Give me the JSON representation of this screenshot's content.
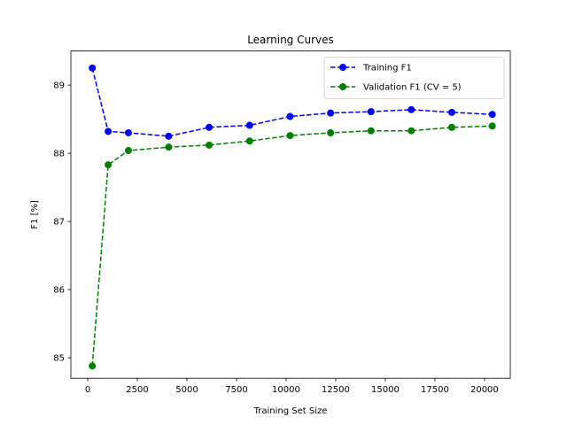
{
  "chart_data": {
    "type": "line",
    "title": "Learning Curves",
    "xlabel": "Training Set Size",
    "ylabel": "F1 [%]",
    "xlim": [
      -850,
      21300
    ],
    "ylim": [
      84.7,
      89.5
    ],
    "xticks": [
      0,
      2500,
      5000,
      7500,
      10000,
      12500,
      15000,
      17500,
      20000
    ],
    "yticks": [
      85,
      86,
      87,
      88,
      89
    ],
    "legend_position": "upper right",
    "grid": false,
    "series": [
      {
        "name": "Training F1",
        "color": "#0000ff",
        "marker": "circle",
        "linestyle": "dashed",
        "x": [
          230,
          1030,
          2050,
          4080,
          6120,
          8160,
          10200,
          12240,
          14280,
          16310,
          18350,
          20390
        ],
        "y": [
          89.25,
          88.32,
          88.3,
          88.25,
          88.38,
          88.41,
          88.54,
          88.59,
          88.61,
          88.64,
          88.6,
          88.57
        ]
      },
      {
        "name": "Validation F1 (CV = 5)",
        "color": "#008000",
        "marker": "circle",
        "linestyle": "dashed",
        "x": [
          230,
          1030,
          2050,
          4080,
          6120,
          8160,
          10200,
          12240,
          14280,
          16310,
          18350,
          20390
        ],
        "y": [
          84.88,
          87.83,
          88.04,
          88.09,
          88.12,
          88.18,
          88.26,
          88.3,
          88.33,
          88.33,
          88.38,
          88.4
        ]
      }
    ]
  }
}
